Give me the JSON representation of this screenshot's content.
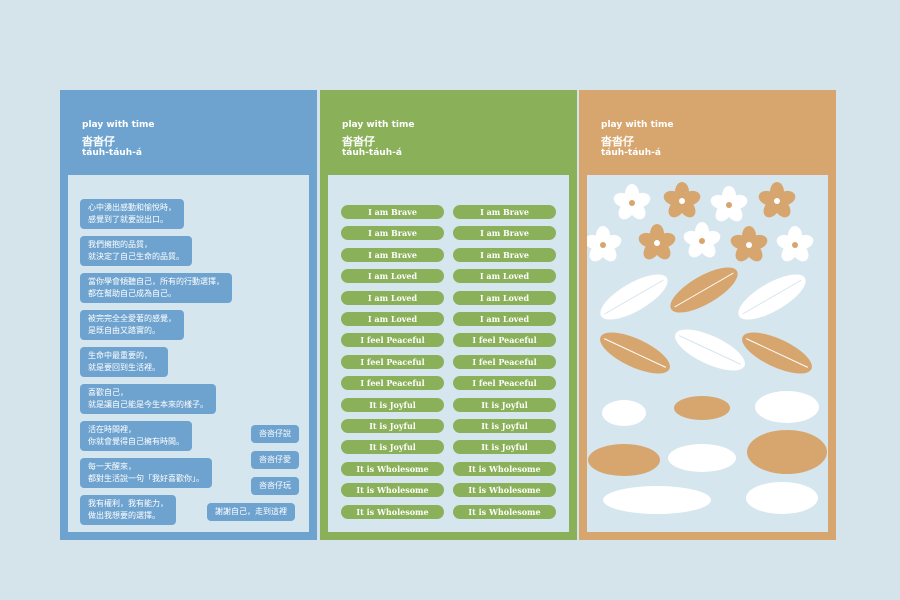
{
  "panels": [
    {
      "header": {
        "tagline": "play with time",
        "title": "沓沓仔",
        "romanization": "táuh-táuh-á"
      }
    },
    {
      "header": {
        "tagline": "play with time",
        "title": "沓沓仔",
        "romanization": "táuh-táuh-á"
      }
    },
    {
      "header": {
        "tagline": "play with time",
        "title": "沓沓仔",
        "romanization": "táuh-táuh-á"
      }
    }
  ],
  "quotes": [
    [
      "心中湧出感動和愉悅時，",
      "感覺到了就要說出口。"
    ],
    [
      "我們擁抱的品質，",
      "就決定了自己生命的品質。"
    ],
    [
      "當你學會傾聽自己，所有的行動選擇，",
      "都在幫助自己成為自己。"
    ],
    [
      "被完完全全愛著的感覺，",
      "是既自由又踏實的。"
    ],
    [
      "生命中最重要的，",
      "就是要回到生活裡。"
    ],
    [
      "喜歡自己，",
      "就是讓自己能是今生本來的樣子。"
    ],
    [
      "活在時間裡，",
      "你就會覺得自己擁有時間。"
    ],
    [
      "每一天醒來，",
      "都對生活說一句「我好喜歡你」。"
    ],
    [
      "我有權利，我有能力，",
      "做出我想要的選擇。"
    ]
  ],
  "short_quotes": [
    "沓沓仔說",
    "沓沓仔愛",
    "沓沓仔玩",
    "謝謝自己，走到這裡"
  ],
  "affirmations": [
    [
      "I am Brave",
      "I am Brave"
    ],
    [
      "I am Brave",
      "I am Brave"
    ],
    [
      "I am Brave",
      "I am Brave"
    ],
    [
      "I am Loved",
      "I am Loved"
    ],
    [
      "I am Loved",
      "I am Loved"
    ],
    [
      "I am Loved",
      "I am Loved"
    ],
    [
      "I feel Peaceful",
      "I feel Peaceful"
    ],
    [
      "I feel Peaceful",
      "I feel Peaceful"
    ],
    [
      "I feel Peaceful",
      "I feel Peaceful"
    ],
    [
      "It is Joyful",
      "It is Joyful"
    ],
    [
      "It is Joyful",
      "It is Joyful"
    ],
    [
      "It is Joyful",
      "It is Joyful"
    ],
    [
      "It is Wholesome",
      "It is Wholesome"
    ],
    [
      "It is Wholesome",
      "It is Wholesome"
    ],
    [
      "It is Wholesome",
      "It is Wholesome"
    ]
  ]
}
